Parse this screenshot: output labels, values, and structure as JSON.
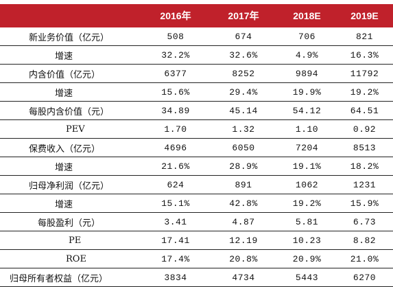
{
  "table": {
    "header": [
      "",
      "2016年",
      "2017年",
      "2018E",
      "2019E"
    ],
    "rows": [
      [
        "新业务价值（亿元）",
        "508",
        "674",
        "706",
        "821"
      ],
      [
        "增速",
        "32.2%",
        "32.6%",
        "4.9%",
        "16.3%"
      ],
      [
        "内含价值（亿元）",
        "6377",
        "8252",
        "9894",
        "11792"
      ],
      [
        "增速",
        "15.6%",
        "29.4%",
        "19.9%",
        "19.2%"
      ],
      [
        "每股内含价值（元）",
        "34.89",
        "45.14",
        "54.12",
        "64.51"
      ],
      [
        "PEV",
        "1.70",
        "1.32",
        "1.10",
        "0.92"
      ],
      [
        "保费收入（亿元）",
        "4696",
        "6050",
        "7204",
        "8513"
      ],
      [
        "增速",
        "21.6%",
        "28.9%",
        "19.1%",
        "18.2%"
      ],
      [
        "归母净利润（亿元）",
        "624",
        "891",
        "1062",
        "1231"
      ],
      [
        "增速",
        "15.1%",
        "42.8%",
        "19.2%",
        "15.9%"
      ],
      [
        "每股盈利（元）",
        "3.41",
        "4.87",
        "5.81",
        "6.73"
      ],
      [
        "PE",
        "17.41",
        "12.19",
        "10.23",
        "8.82"
      ],
      [
        "ROE",
        "17.4%",
        "20.8%",
        "20.9%",
        "21.0%"
      ],
      [
        "归母所有者权益（亿元）",
        "3834",
        "4734",
        "5443",
        "6270"
      ]
    ]
  }
}
